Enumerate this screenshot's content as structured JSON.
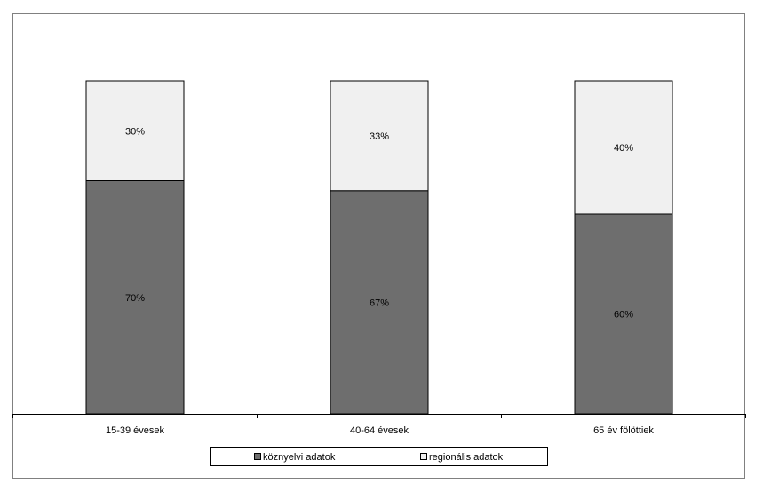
{
  "chart_data": {
    "type": "bar",
    "stacked": true,
    "normalized_percent": true,
    "title": "",
    "xlabel": "",
    "ylabel": "",
    "ylim": [
      0,
      100
    ],
    "grid": false,
    "legend_position": "bottom",
    "categories": [
      "15-39 évesek",
      "40-64 évesek",
      "65 év fölöttiek"
    ],
    "series": [
      {
        "name": "köznyelvi adatok",
        "values": [
          70,
          67,
          60
        ],
        "labels": [
          "70%",
          "67%",
          "60%"
        ],
        "color": "#6e6e6e"
      },
      {
        "name": "regionális adatok",
        "values": [
          30,
          33,
          40
        ],
        "labels": [
          "30%",
          "33%",
          "40%"
        ],
        "color": "#f0f0f0"
      }
    ]
  }
}
